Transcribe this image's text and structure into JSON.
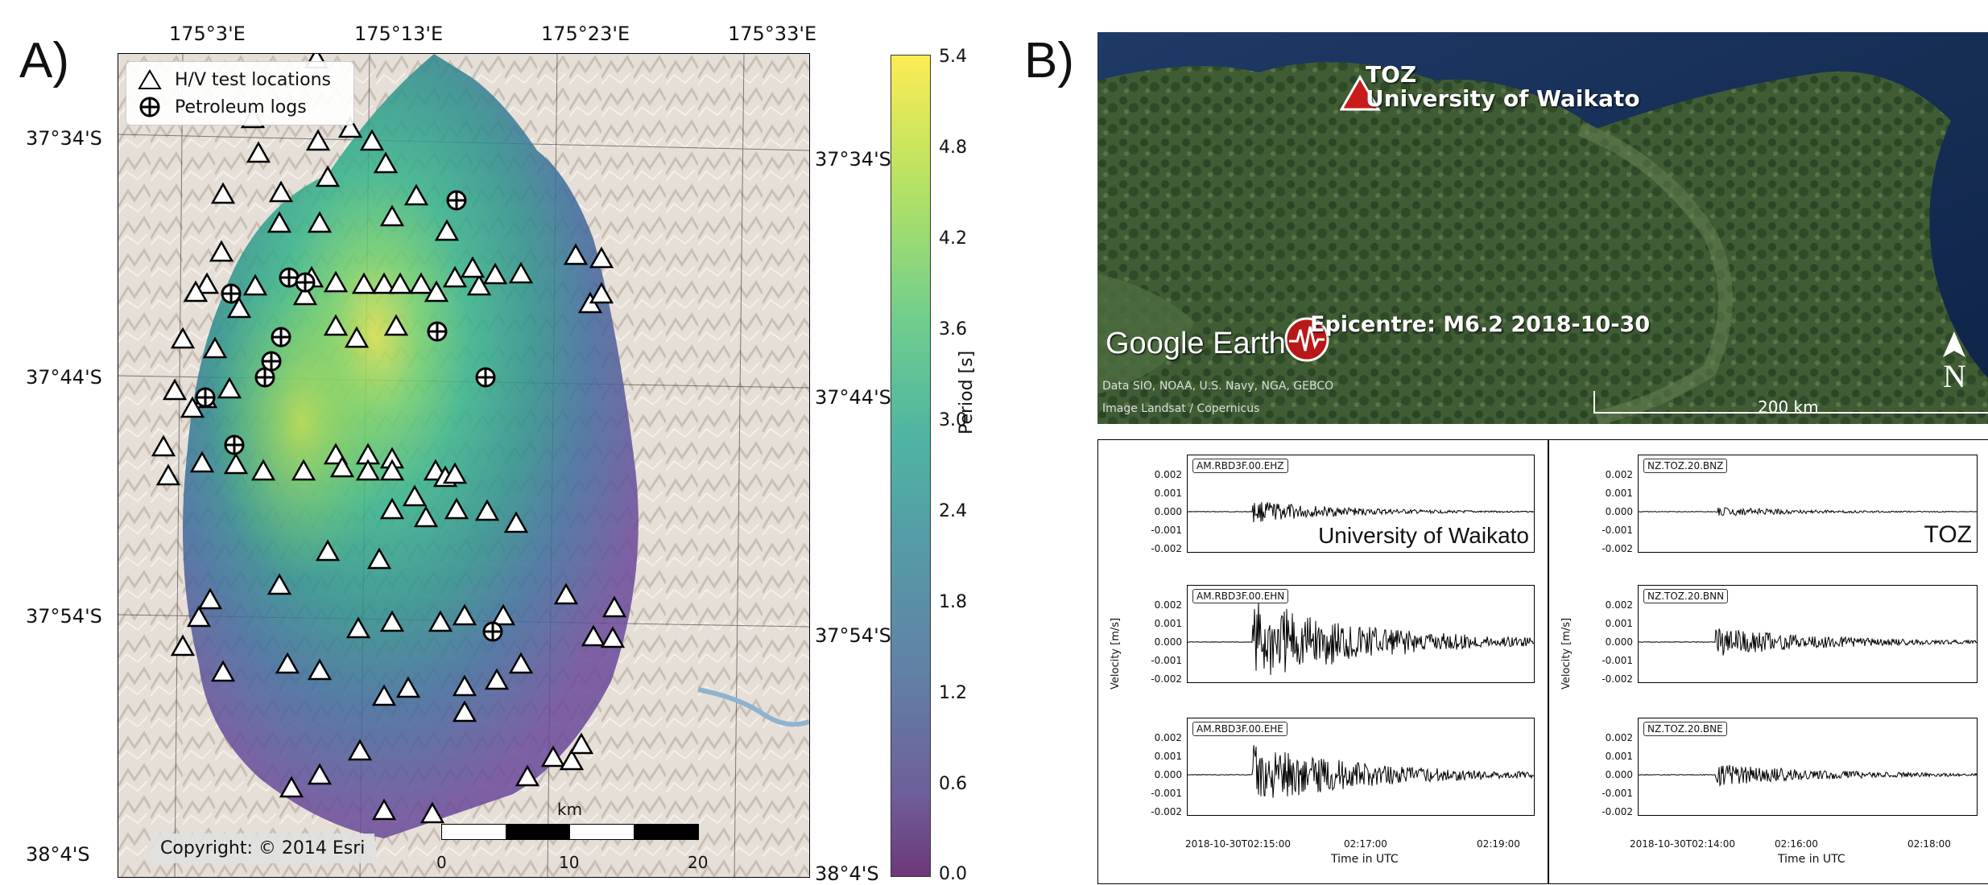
{
  "panel_a": {
    "letter": "A)",
    "top_ticks": [
      "175°3'E",
      "175°13'E",
      "175°23'E",
      "175°33'E"
    ],
    "left_ticks": [
      "37°34'S",
      "37°44'S",
      "37°54'S",
      "38°4'S"
    ],
    "right_ticks": [
      "37°34'S",
      "37°44'S",
      "37°54'S",
      "38°4'S"
    ],
    "legend": {
      "hv": "H/V test locations",
      "petroleum": "Petroleum logs"
    },
    "scale_unit": "km",
    "scale_ticks": [
      "0",
      "10",
      "20"
    ],
    "copyright": "Copyright: © 2014 Esri",
    "colorbar": {
      "label": "Period [s]",
      "ticks": [
        "5.4",
        "4.8",
        "4.2",
        "3.6",
        "3.0",
        "2.4",
        "1.8",
        "1.2",
        "0.6",
        "0.0"
      ]
    }
  },
  "panel_b": {
    "letter": "B)",
    "station_code": "TOZ",
    "station_name": "University of Waikato",
    "epicentre": "Epicentre: M6.2 2018-10-30",
    "brand": "Google Earth",
    "attribution_1": "Data SIO, NOAA, U.S. Navy, NGA, GEBCO",
    "attribution_2": "Image Landsat / Copernicus",
    "scale": "200 km",
    "north": "N",
    "left_column": {
      "station_label": "University of Waikato",
      "tags": [
        "AM.RBD3F.00.EHZ",
        "AM.RBD3F.00.EHN",
        "AM.RBD3F.00.EHE"
      ],
      "xticks": [
        "2018-10-30T02:15:00",
        "02:17:00",
        "02:19:00"
      ],
      "xlabel": "Time in UTC",
      "ylabel": "Velocity [m/s]"
    },
    "right_column": {
      "station_label": "TOZ",
      "tags": [
        "NZ.TOZ.20.BNZ",
        "NZ.TOZ.20.BNN",
        "NZ.TOZ.20.BNE"
      ],
      "xticks": [
        "2018-10-30T02:14:00",
        "02:16:00",
        "02:18:00"
      ],
      "xlabel": "Time in UTC",
      "ylabel": "Velocity [m/s]"
    },
    "yticks": [
      "0.002",
      "0.001",
      "0.000",
      "-0.001",
      "-0.002"
    ]
  }
}
